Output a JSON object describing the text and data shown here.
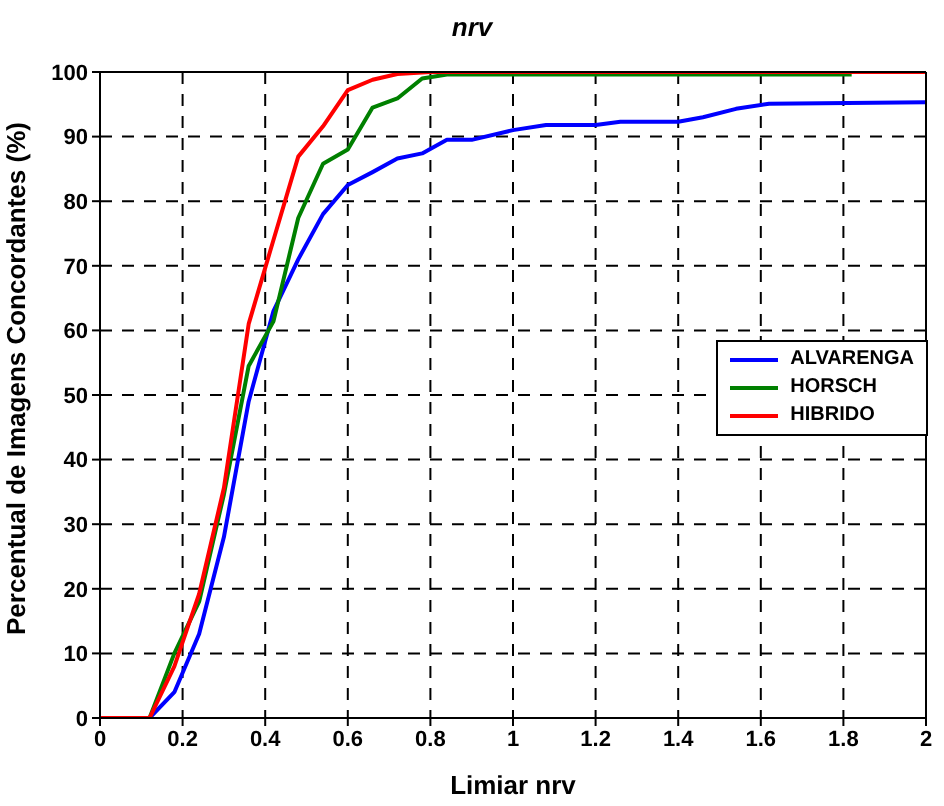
{
  "chart_data": {
    "type": "line",
    "title": "nrv",
    "xlabel": "Limiar nrv",
    "ylabel": "Percentual de Imagens Concordantes (%)",
    "xlim": [
      0,
      2
    ],
    "xticks": [
      0,
      0.2,
      0.4,
      0.6,
      0.8,
      1,
      1.2,
      1.4,
      1.6,
      1.8,
      2
    ],
    "ylim": [
      0,
      100
    ],
    "yticks": [
      0,
      10,
      20,
      30,
      40,
      50,
      60,
      70,
      80,
      90,
      100
    ],
    "grid": true,
    "legend": "right",
    "marker": "none",
    "line_style": "solid",
    "series": [
      {
        "name": "ALVARENGA",
        "color": "#0000ff",
        "x": [
          0,
          0.12,
          0.18,
          0.24,
          0.3,
          0.36,
          0.42,
          0.48,
          0.54,
          0.6,
          0.66,
          0.72,
          0.78,
          0.84,
          0.9,
          1,
          1.08,
          1.2,
          1.26,
          1.4,
          1.46,
          1.54,
          1.62,
          2
        ],
        "values": [
          0,
          0,
          4,
          13,
          28,
          49,
          63,
          71,
          78,
          82.5,
          84.5,
          86.6,
          87.4,
          89.5,
          89.5,
          91,
          91.8,
          91.8,
          92.3,
          92.3,
          93,
          94.3,
          95.1,
          95.3
        ]
      },
      {
        "name": "HORSCH",
        "color": "#008000",
        "x": [
          0,
          0.12,
          0.18,
          0.24,
          0.3,
          0.36,
          0.42,
          0.48,
          0.54,
          0.6,
          0.66,
          0.72,
          0.78,
          0.84,
          1.82
        ],
        "values": [
          0,
          0,
          10,
          18,
          34.6,
          54.5,
          61.4,
          77.4,
          85.8,
          88,
          94.5,
          95.9,
          99,
          99.6,
          99.6
        ]
      },
      {
        "name": "HIBRIDO",
        "color": "#ff0000",
        "x": [
          0,
          0.12,
          0.18,
          0.24,
          0.3,
          0.36,
          0.42,
          0.48,
          0.54,
          0.6,
          0.66,
          0.72,
          0.8,
          2
        ],
        "values": [
          0,
          0,
          8,
          19.2,
          35.6,
          61,
          74,
          86.9,
          91.6,
          97.2,
          98.8,
          99.7,
          100,
          100
        ]
      }
    ]
  }
}
